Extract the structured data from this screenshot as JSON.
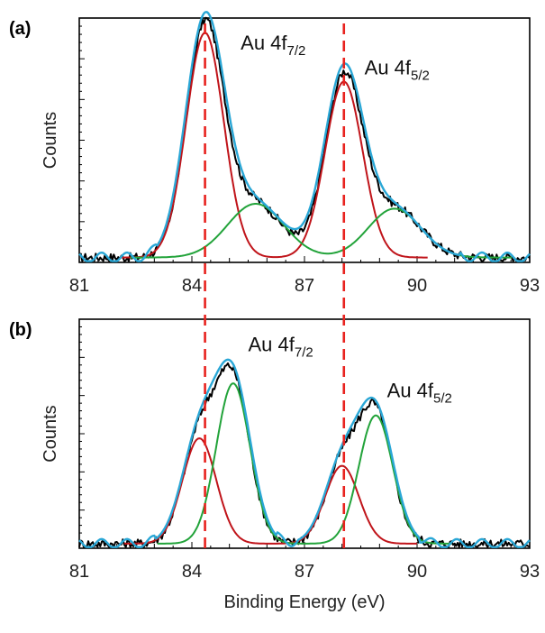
{
  "chart_data": [
    {
      "type": "line",
      "panel_label": "(a)",
      "title": "",
      "xlabel": "",
      "ylabel": "Counts",
      "xlim": [
        81,
        93
      ],
      "ylim": [
        0,
        1
      ],
      "xticks": [
        "81",
        "84",
        "87",
        "90",
        "93"
      ],
      "grid": false,
      "legend": "none",
      "reference_lines": [
        84.35,
        88.05
      ],
      "annotations": [
        {
          "main": "Au 4f",
          "sub": "7/2",
          "x": 85.3,
          "y": 0.87
        },
        {
          "main": "Au 4f",
          "sub": "5/2",
          "x": 88.6,
          "y": 0.77
        }
      ],
      "series": [
        {
          "color": "#000000",
          "peaks": [
            {
              "c": 84.35,
              "a": 0.94,
              "w": 0.5
            },
            {
              "c": 88.05,
              "a": 0.73,
              "w": 0.5
            },
            {
              "c": 85.7,
              "a": 0.22,
              "w": 0.7
            },
            {
              "c": 89.4,
              "a": 0.2,
              "w": 0.7
            }
          ],
          "baseline": 0.02,
          "noise": 0.018
        },
        {
          "color": "#c0141a",
          "peaks": [
            {
              "c": 84.35,
              "a": 0.92,
              "w": 0.5
            },
            {
              "c": 88.05,
              "a": 0.72,
              "w": 0.5
            }
          ],
          "baseline": 0.02
        },
        {
          "color": "#22a33a",
          "peaks": [
            {
              "c": 85.7,
              "a": 0.22,
              "w": 0.75
            },
            {
              "c": 89.4,
              "a": 0.2,
              "w": 0.7
            }
          ],
          "baseline": 0.02
        },
        {
          "color": "#2aa7d6",
          "peaks": [
            {
              "c": 84.35,
              "a": 0.96,
              "w": 0.52
            },
            {
              "c": 88.05,
              "a": 0.76,
              "w": 0.52
            },
            {
              "c": 85.7,
              "a": 0.22,
              "w": 0.75
            },
            {
              "c": 89.4,
              "a": 0.2,
              "w": 0.7
            }
          ],
          "baseline": 0.02,
          "noise_outside": 0.02
        }
      ]
    },
    {
      "type": "line",
      "panel_label": "(b)",
      "title": "",
      "xlabel": "Binding Energy (eV)",
      "ylabel": "Counts",
      "xlim": [
        81,
        93
      ],
      "ylim": [
        0,
        1
      ],
      "xticks": [
        "81",
        "84",
        "87",
        "90",
        "93"
      ],
      "grid": false,
      "legend": "none",
      "reference_lines": [
        84.35,
        88.05
      ],
      "annotations": [
        {
          "main": "Au 4f",
          "sub": "7/2",
          "x": 85.5,
          "y": 0.86
        },
        {
          "main": "Au 4f",
          "sub": "5/2",
          "x": 89.2,
          "y": 0.66
        }
      ],
      "series": [
        {
          "color": "#000000",
          "peaks": [
            {
              "c": 84.2,
              "a": 0.46,
              "w": 0.45
            },
            {
              "c": 85.1,
              "a": 0.7,
              "w": 0.45
            },
            {
              "c": 88.0,
              "a": 0.34,
              "w": 0.45
            },
            {
              "c": 88.9,
              "a": 0.56,
              "w": 0.45
            }
          ],
          "baseline": 0.02,
          "noise": 0.02
        },
        {
          "color": "#c0141a",
          "peaks": [
            {
              "c": 84.2,
              "a": 0.46,
              "w": 0.45
            },
            {
              "c": 88.0,
              "a": 0.34,
              "w": 0.45
            }
          ],
          "baseline": 0.02
        },
        {
          "color": "#22a33a",
          "peaks": [
            {
              "c": 85.1,
              "a": 0.7,
              "w": 0.45
            },
            {
              "c": 88.9,
              "a": 0.56,
              "w": 0.45
            }
          ],
          "baseline": 0.02
        },
        {
          "color": "#2aa7d6",
          "peaks": [
            {
              "c": 84.2,
              "a": 0.46,
              "w": 0.47
            },
            {
              "c": 85.1,
              "a": 0.71,
              "w": 0.47
            },
            {
              "c": 88.0,
              "a": 0.34,
              "w": 0.47
            },
            {
              "c": 88.9,
              "a": 0.57,
              "w": 0.47
            }
          ],
          "baseline": 0.02,
          "noise_outside": 0.02
        }
      ]
    }
  ],
  "colors": {
    "measured": "#000000",
    "component_a": "#c0141a",
    "component_b": "#22a33a",
    "envelope": "#2aa7d6",
    "reference_line": "#e8221e"
  }
}
